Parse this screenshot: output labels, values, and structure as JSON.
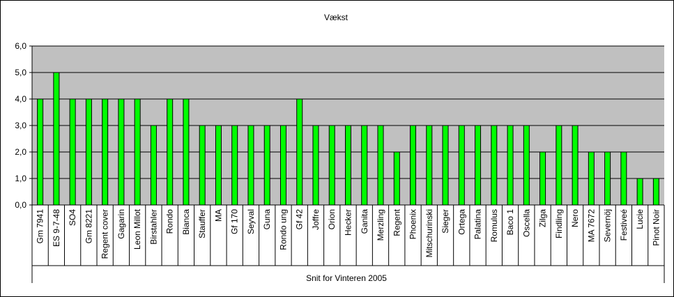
{
  "chart_data": {
    "type": "bar",
    "title": "Vækst",
    "xlabel": "Snit for Vinteren 2005",
    "ylabel": "",
    "ylim": [
      0,
      6
    ],
    "yticks": [
      "0,0",
      "1,0",
      "2,0",
      "3,0",
      "4,0",
      "5,0",
      "6,0"
    ],
    "grid": true,
    "legend": "none",
    "colors": {
      "bar": "#00ff00",
      "bar_edge": "#000000",
      "plot_bg": "#c0c0c0",
      "grid": "#000000"
    },
    "categories": [
      "Gm 7941",
      "ES 9-7-48",
      "SO4",
      "Gm 8221",
      "Regent cover",
      "Gagarin",
      "Leon Millot",
      "Birstahler",
      "Rondo",
      "Bianca",
      "Stauffer",
      "MA",
      "Gf 170",
      "Seyval",
      "Guna",
      "Rondo ung",
      "Gf 42",
      "Joffre",
      "Orion",
      "Hecker",
      "Ganita",
      "Merzling",
      "Regent",
      "Phoenix",
      "Mitschurinski",
      "Sieger",
      "Ortega",
      "Palatina",
      "Romulus",
      "Baco 1",
      "Oscella",
      "Zilga",
      "Findling",
      "Nero",
      "MA 7672",
      "Severnöj",
      "Festiveé",
      "Lucie",
      "Pinot Noir"
    ],
    "values": [
      4,
      5,
      4,
      4,
      4,
      4,
      4,
      3,
      4,
      4,
      3,
      3,
      3,
      3,
      3,
      3,
      4,
      3,
      3,
      3,
      3,
      3,
      2,
      3,
      3,
      3,
      3,
      3,
      3,
      3,
      3,
      2,
      3,
      3,
      2,
      2,
      2,
      1,
      1
    ]
  }
}
